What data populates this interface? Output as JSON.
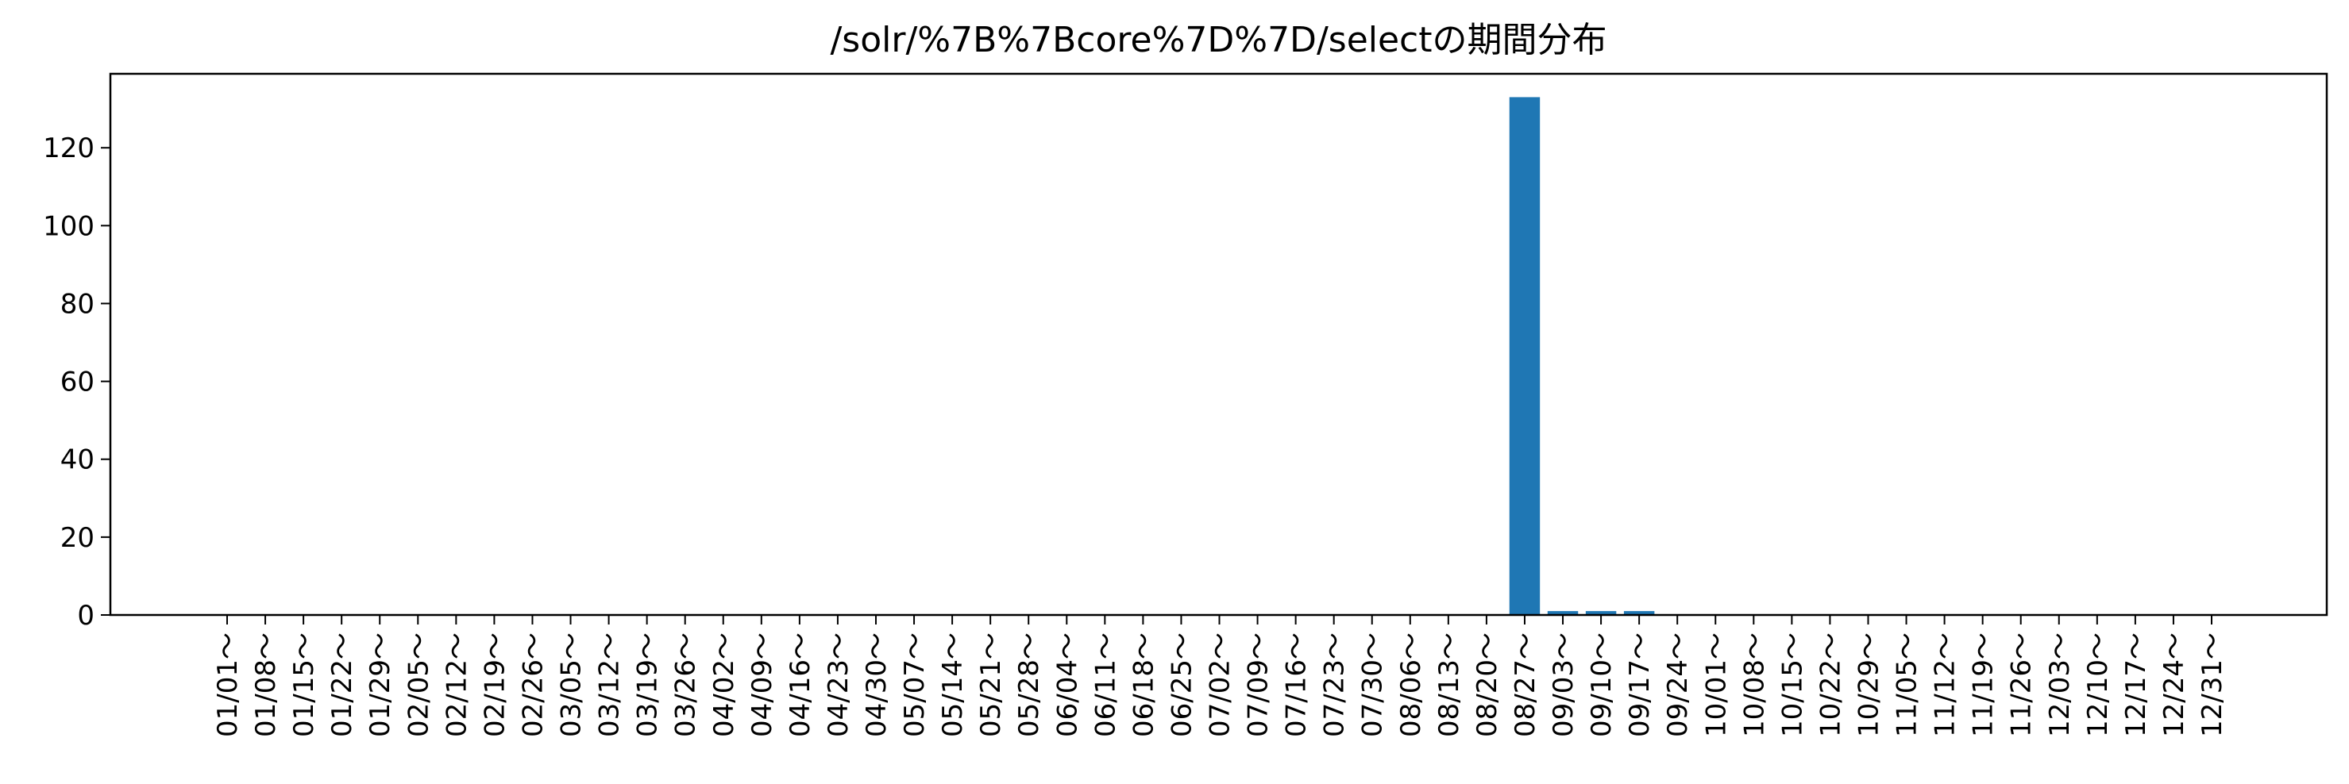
{
  "chart_data": {
    "type": "bar",
    "title": "/solr/%7B%7Bcore%7D%7D/selectの期間分布",
    "xlabel": "",
    "ylabel": "",
    "ylim": [
      0,
      139
    ],
    "yticks": [
      0,
      20,
      40,
      60,
      80,
      100,
      120
    ],
    "grid": false,
    "legend": "none",
    "bar_color": "#1f77b4",
    "categories": [
      "01/01～",
      "01/08～",
      "01/15～",
      "01/22～",
      "01/29～",
      "02/05～",
      "02/12～",
      "02/19～",
      "02/26～",
      "03/05～",
      "03/12～",
      "03/19～",
      "03/26～",
      "04/02～",
      "04/09～",
      "04/16～",
      "04/23～",
      "04/30～",
      "05/07～",
      "05/14～",
      "05/21～",
      "05/28～",
      "06/04～",
      "06/11～",
      "06/18～",
      "06/25～",
      "07/02～",
      "07/09～",
      "07/16～",
      "07/23～",
      "07/30～",
      "08/06～",
      "08/13～",
      "08/20～",
      "08/27～",
      "09/03～",
      "09/10～",
      "09/17～",
      "09/24～",
      "10/01～",
      "10/08～",
      "10/15～",
      "10/22～",
      "10/29～",
      "11/05～",
      "11/12～",
      "11/19～",
      "11/26～",
      "12/03～",
      "12/10～",
      "12/17～",
      "12/24～",
      "12/31～"
    ],
    "values": [
      0,
      0,
      0,
      0,
      0,
      0,
      0,
      0,
      0,
      0,
      0,
      0,
      0,
      0,
      0,
      0,
      0,
      0,
      0,
      0,
      0,
      0,
      0,
      0,
      0,
      0,
      0,
      0,
      0,
      0,
      0,
      0,
      0,
      0,
      133,
      1,
      1,
      1,
      0,
      0,
      0,
      0,
      0,
      0,
      0,
      0,
      0,
      0,
      0,
      0,
      0,
      0,
      0
    ]
  }
}
